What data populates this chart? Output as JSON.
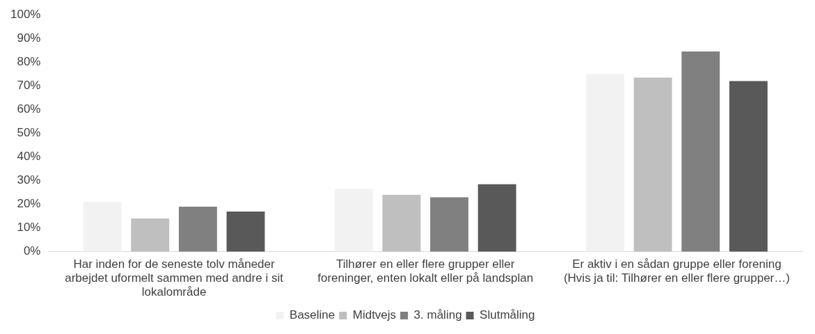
{
  "chart_data": {
    "type": "bar",
    "categories": [
      "Har inden for de seneste tolv måneder arbejdet uformelt sammen med andre i sit lokalområde",
      "Tilhører en eller flere grupper eller foreninger, enten lokalt eller på landsplan",
      "Er aktiv i en sådan gruppe eller forening (Hvis ja til: Tilhører en eller flere grupper…)"
    ],
    "series": [
      {
        "name": "Baseline",
        "color": "#f2f2f2",
        "values": [
          21,
          26.5,
          75
        ]
      },
      {
        "name": "Midtvejs",
        "color": "#bfbfbf",
        "values": [
          14,
          24,
          73.5
        ]
      },
      {
        "name": "3. måling",
        "color": "#808080",
        "values": [
          19,
          23,
          84.5
        ]
      },
      {
        "name": "Slutmåling",
        "color": "#595959",
        "values": [
          17,
          28.5,
          72
        ]
      }
    ],
    "ylim": [
      0,
      100
    ],
    "yticks": [
      {
        "value": 0,
        "label": "0%"
      },
      {
        "value": 10,
        "label": "10%"
      },
      {
        "value": 20,
        "label": "20%"
      },
      {
        "value": 30,
        "label": "30%"
      },
      {
        "value": 40,
        "label": "40%"
      },
      {
        "value": 50,
        "label": "50%"
      },
      {
        "value": 60,
        "label": "60%"
      },
      {
        "value": 70,
        "label": "70%"
      },
      {
        "value": 80,
        "label": "80%"
      },
      {
        "value": 90,
        "label": "90%"
      },
      {
        "value": 100,
        "label": "100%"
      }
    ],
    "grid": false,
    "legend": "bottom"
  }
}
